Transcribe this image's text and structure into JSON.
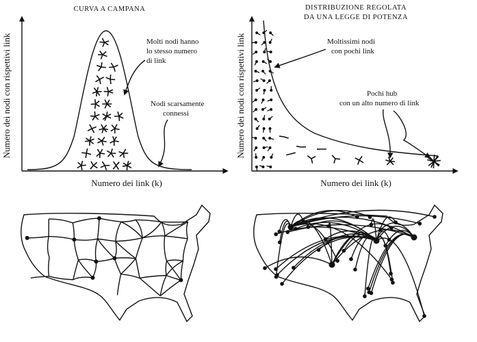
{
  "panels": [
    {
      "title": [
        "CURVA A CAMPANA"
      ],
      "y_axis_label": "Numero dei nodi con rispettivi link",
      "x_axis_label": "Numero dei link (k)",
      "annotations": [
        {
          "lines": [
            "Molti nodi hanno",
            "lo stesso numero",
            "di link"
          ]
        },
        {
          "lines": [
            "Nodi scarsamente",
            "connessi"
          ]
        }
      ]
    },
    {
      "title": [
        "DISTRIBUZIONE REGOLATA",
        "DA UNA LEGGE DI POTENZA"
      ],
      "y_axis_label": "Numero dei nodi con rispettivi link",
      "x_axis_label": "Numero dei link (k)",
      "annotations": [
        {
          "lines": [
            "Moltissimi nodi",
            "con pochi link"
          ]
        },
        {
          "lines": [
            "Pochi hub",
            "con un alto numero di link"
          ]
        }
      ]
    }
  ]
}
